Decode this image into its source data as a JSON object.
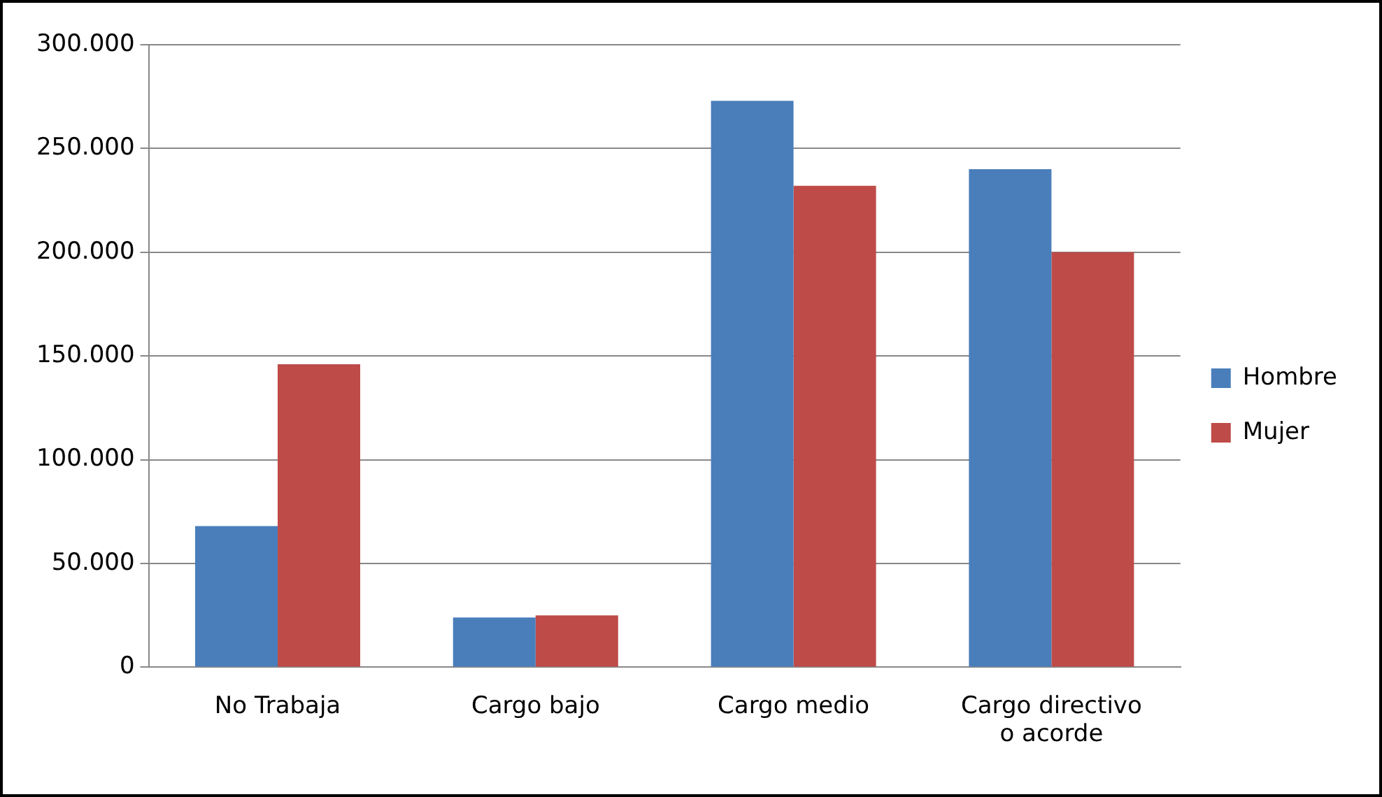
{
  "chart_data": {
    "type": "bar",
    "categories": [
      "No Trabaja",
      "Cargo bajo",
      "Cargo medio",
      "Cargo directivo o acorde"
    ],
    "series": [
      {
        "name": "Hombre",
        "color": "#4a7ebb",
        "values": [
          68000,
          24000,
          273000,
          240000
        ]
      },
      {
        "name": "Mujer",
        "color": "#be4b48",
        "values": [
          146000,
          25000,
          232000,
          200000
        ]
      }
    ],
    "ylim": [
      0,
      300000
    ],
    "yticks": [
      {
        "value": 0,
        "label": "0"
      },
      {
        "value": 50000,
        "label": "50.000"
      },
      {
        "value": 100000,
        "label": "100.000"
      },
      {
        "value": 150000,
        "label": "150.000"
      },
      {
        "value": 200000,
        "label": "200.000"
      },
      {
        "value": 250000,
        "label": "250.000"
      },
      {
        "value": 300000,
        "label": "300.000"
      }
    ],
    "grid": "y",
    "legend": "right"
  }
}
